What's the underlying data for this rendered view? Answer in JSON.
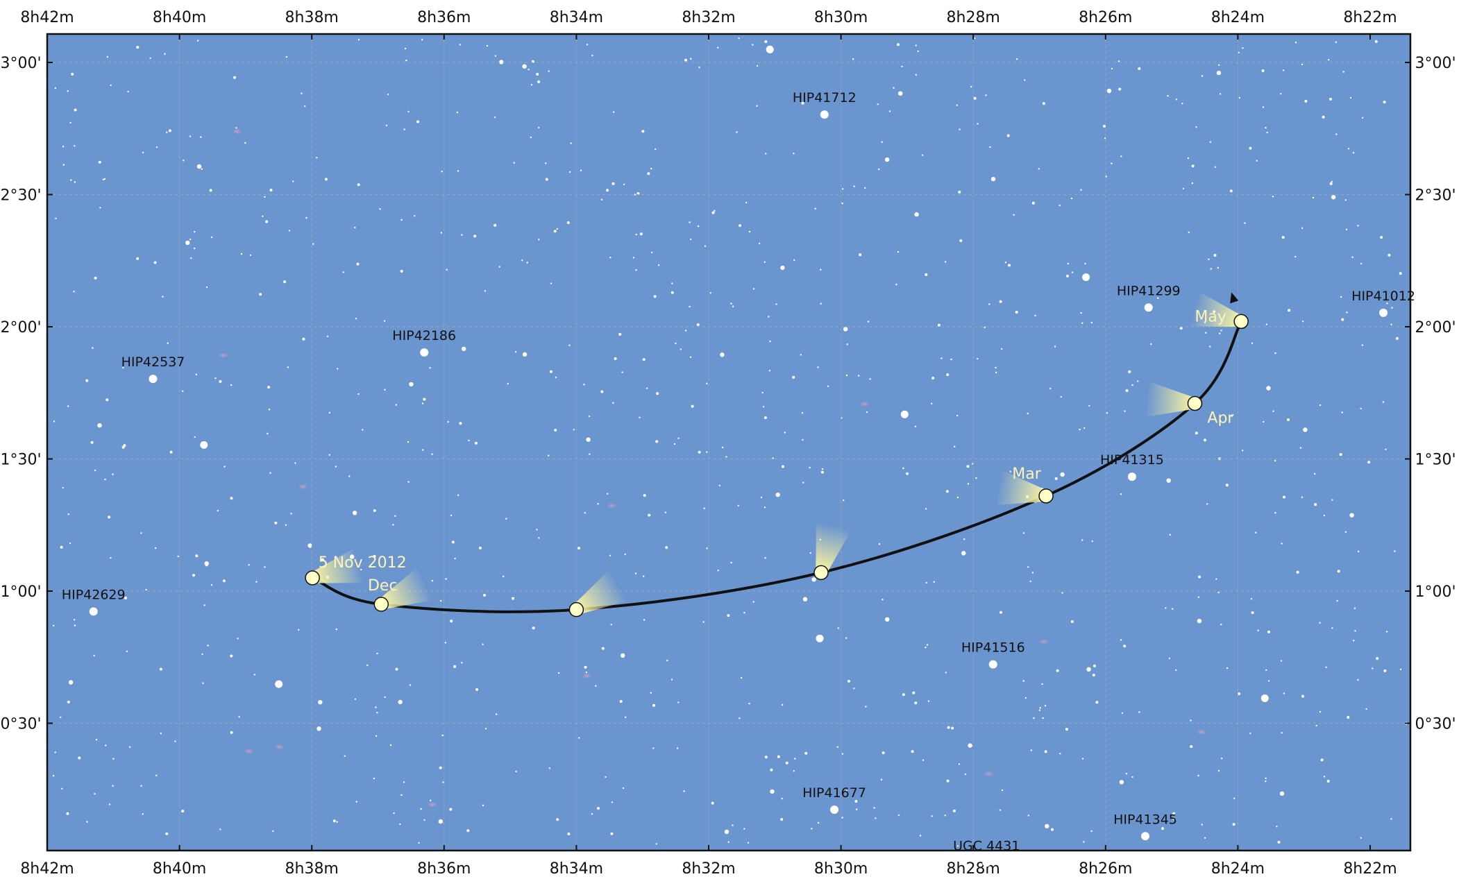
{
  "chart_data": {
    "type": "scatter",
    "ra_ticks": [
      "8h42m",
      "8h40m",
      "8h38m",
      "8h36m",
      "8h34m",
      "8h32m",
      "8h30m",
      "8h28m",
      "8h26m",
      "8h24m",
      "8h22m"
    ],
    "dec_ticks": [
      "3°00'",
      "2°30'",
      "2°00'",
      "1°30'",
      "1°00'",
      "0°30'"
    ],
    "grid": true,
    "colors": {
      "sky": "#6b95cf",
      "frame": "#111111",
      "path": "#111111",
      "comet": "#ffffc8",
      "tail": "#fff7a0",
      "date_label": "#fff4b8"
    },
    "labeled_stars": [
      {
        "name": "HIP41712",
        "ra": 30.25,
        "dec": 2.85
      },
      {
        "name": "HIP42186",
        "ra": 36.3,
        "dec": 1.95
      },
      {
        "name": "HIP42537",
        "ra": 40.4,
        "dec": 1.85
      },
      {
        "name": "HIP42629",
        "ra": 41.3,
        "dec": 0.97
      },
      {
        "name": "HIP41299",
        "ra": 25.35,
        "dec": 2.12
      },
      {
        "name": "HIP41012",
        "ra": 21.8,
        "dec": 2.1
      },
      {
        "name": "HIP41315",
        "ra": 25.6,
        "dec": 1.48
      },
      {
        "name": "HIP41516",
        "ra": 27.7,
        "dec": 0.77
      },
      {
        "name": "HIP41677",
        "ra": 30.1,
        "dec": 0.22
      },
      {
        "name": "HIP41345",
        "ra": 25.4,
        "dec": 0.12
      },
      {
        "name": "UGC 4431",
        "ra": 27.8,
        "dec": 0.02
      }
    ],
    "comet_path": [
      {
        "label": "5 Nov 2012",
        "ra": 37.99,
        "dec": 1.05
      },
      {
        "label": "Dec",
        "ra": 36.95,
        "dec": 0.95
      },
      {
        "label": "",
        "ra": 34.0,
        "dec": 0.93
      },
      {
        "label": "",
        "ra": 30.3,
        "dec": 1.07
      },
      {
        "label": "Mar",
        "ra": 26.9,
        "dec": 1.36
      },
      {
        "label": "Apr",
        "ra": 24.65,
        "dec": 1.71
      },
      {
        "label": "May",
        "ra": 23.95,
        "dec": 2.02
      }
    ]
  }
}
